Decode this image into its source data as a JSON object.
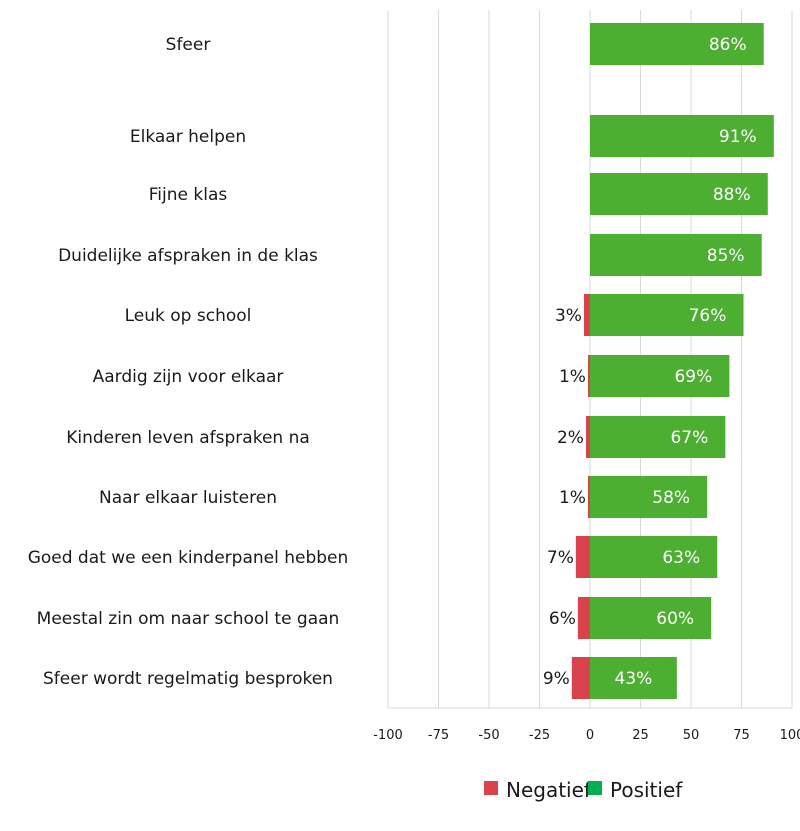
{
  "chart_data": {
    "type": "bar",
    "orientation": "horizontal",
    "stacked": "diverging",
    "categories": [
      "Sfeer",
      "Elkaar helpen",
      "Fijne klas",
      "Duidelijke afspraken in de klas",
      "Leuk op school",
      "Aardig zijn voor elkaar",
      "Kinderen leven afspraken na",
      "Naar elkaar luisteren",
      "Goed dat we een kinderpanel hebben",
      "Meestal zin om naar school te gaan",
      "Sfeer wordt regelmatig besproken"
    ],
    "series": [
      {
        "name": "Negatief",
        "color": "#d9434e",
        "values": [
          0,
          0,
          0,
          0,
          3,
          1,
          2,
          1,
          7,
          6,
          9
        ],
        "labels": [
          "",
          "",
          "",
          "",
          "3%",
          "1%",
          "2%",
          "1%",
          "7%",
          "6%",
          "9%"
        ]
      },
      {
        "name": "Positief",
        "color": "#4caf32",
        "values": [
          86,
          91,
          88,
          85,
          76,
          69,
          67,
          58,
          63,
          60,
          43
        ],
        "labels": [
          "86%",
          "91%",
          "88%",
          "85%",
          "76%",
          "69%",
          "67%",
          "58%",
          "63%",
          "60%",
          "43%"
        ]
      }
    ],
    "xlim": [
      -100,
      100
    ],
    "xticks": [
      "-100",
      "-75",
      "-50",
      "-25",
      "0",
      "25",
      "50",
      "75",
      "100"
    ],
    "grid": "vertical",
    "legend": {
      "position": "bottom-right",
      "entries": [
        {
          "label": "Negatief",
          "color": "#d9434e"
        },
        {
          "label": "Positief",
          "color": "#00b050"
        }
      ]
    }
  }
}
